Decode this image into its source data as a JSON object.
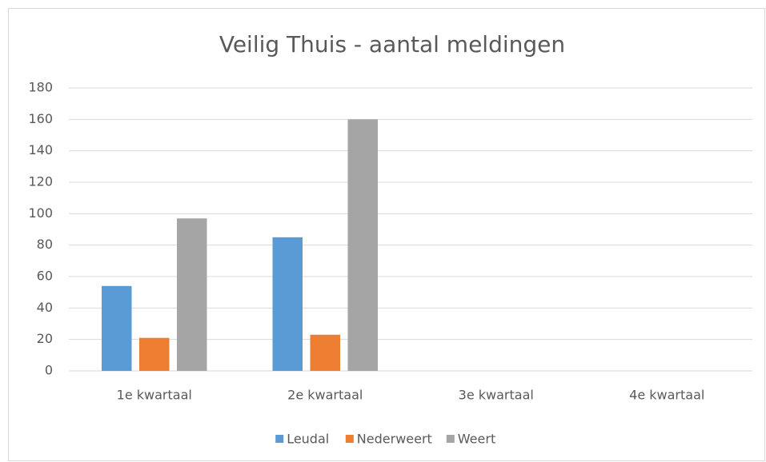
{
  "chart_data": {
    "type": "bar",
    "title": "Veilig Thuis - aantal meldingen",
    "categories": [
      "1e kwartaal",
      "2e kwartaal",
      "3e kwartaal",
      "4e kwartaal"
    ],
    "series": [
      {
        "name": "Leudal",
        "color": "#5b9bd5",
        "values": [
          54,
          85,
          null,
          null
        ]
      },
      {
        "name": "Nederweert",
        "color": "#ed7d31",
        "values": [
          21,
          23,
          null,
          null
        ]
      },
      {
        "name": "Weert",
        "color": "#a5a5a5",
        "values": [
          97,
          160,
          null,
          null
        ]
      }
    ],
    "ylim": [
      0,
      180
    ],
    "yticks": [
      0,
      20,
      40,
      60,
      80,
      100,
      120,
      140,
      160,
      180
    ],
    "grid": true,
    "legend": "bottom"
  }
}
